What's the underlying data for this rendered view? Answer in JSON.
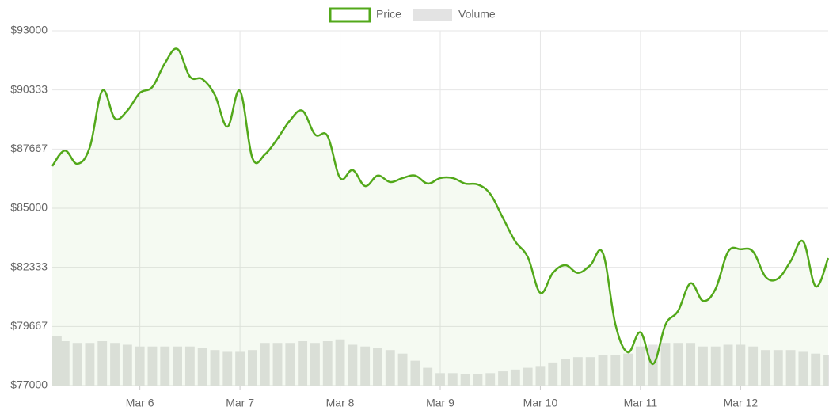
{
  "chart_data": {
    "type": "line",
    "categories": [
      null,
      null,
      null,
      null,
      null,
      null,
      null,
      "Mar 6",
      null,
      null,
      null,
      null,
      null,
      null,
      null,
      "Mar 7",
      null,
      null,
      null,
      null,
      null,
      null,
      null,
      "Mar 8",
      null,
      null,
      null,
      null,
      null,
      null,
      null,
      "Mar 9",
      null,
      null,
      null,
      null,
      null,
      null,
      null,
      "Mar 10",
      null,
      null,
      null,
      null,
      null,
      null,
      null,
      "Mar 11",
      null,
      null,
      null,
      null,
      null,
      null,
      null,
      "Mar 12",
      null,
      null,
      null,
      null,
      null,
      null,
      null
    ],
    "series": [
      {
        "name": "Price",
        "color": "#52a81a",
        "values": [
          86900,
          87600,
          87000,
          87750,
          90300,
          89050,
          89400,
          90200,
          90470,
          91540,
          92180,
          90930,
          90820,
          90100,
          88680,
          90290,
          87250,
          87430,
          88140,
          88960,
          89390,
          88320,
          88250,
          86360,
          86720,
          86000,
          86470,
          86180,
          86360,
          86470,
          86110,
          86360,
          86360,
          86110,
          86070,
          85640,
          84570,
          83500,
          82790,
          81180,
          82080,
          82430,
          82080,
          82430,
          82970,
          79750,
          78500,
          79400,
          77970,
          79750,
          80360,
          81610,
          80820,
          81360,
          83040,
          83150,
          83040,
          81900,
          81830,
          82610,
          83500,
          81470,
          82750
        ]
      },
      {
        "name": "Volume",
        "color": "#e3e3e3",
        "axis": "y2",
        "type": "bar",
        "values": [
          14,
          12.5,
          12,
          12,
          12.5,
          12,
          11.5,
          11,
          11,
          11,
          11,
          11,
          10.5,
          10,
          9.5,
          9.5,
          10,
          12,
          12,
          12,
          12.5,
          12,
          12.5,
          13,
          11.5,
          11,
          10.5,
          10,
          9,
          7,
          5,
          3.5,
          3.5,
          3.3,
          3.3,
          3.5,
          4,
          4.5,
          5,
          5.5,
          6.5,
          7.5,
          8,
          8,
          8.5,
          8.5,
          9,
          11,
          11.5,
          12,
          12,
          12,
          11,
          11,
          11.5,
          11.5,
          11,
          10,
          10,
          10,
          9.5,
          9,
          8.5
        ]
      }
    ],
    "ylim": [
      77000,
      93000
    ],
    "yticks": [
      {
        "value": 77000,
        "label": "$77000"
      },
      {
        "value": 79667,
        "label": "$79667"
      },
      {
        "value": 82333,
        "label": "$82333"
      },
      {
        "value": 85000,
        "label": "$85000"
      },
      {
        "value": 87667,
        "label": "$87667"
      },
      {
        "value": 90333,
        "label": "$90333"
      },
      {
        "value": 93000,
        "label": "$93000"
      }
    ],
    "y2lim": [
      0,
      100
    ],
    "grid": true,
    "legend": "top"
  }
}
